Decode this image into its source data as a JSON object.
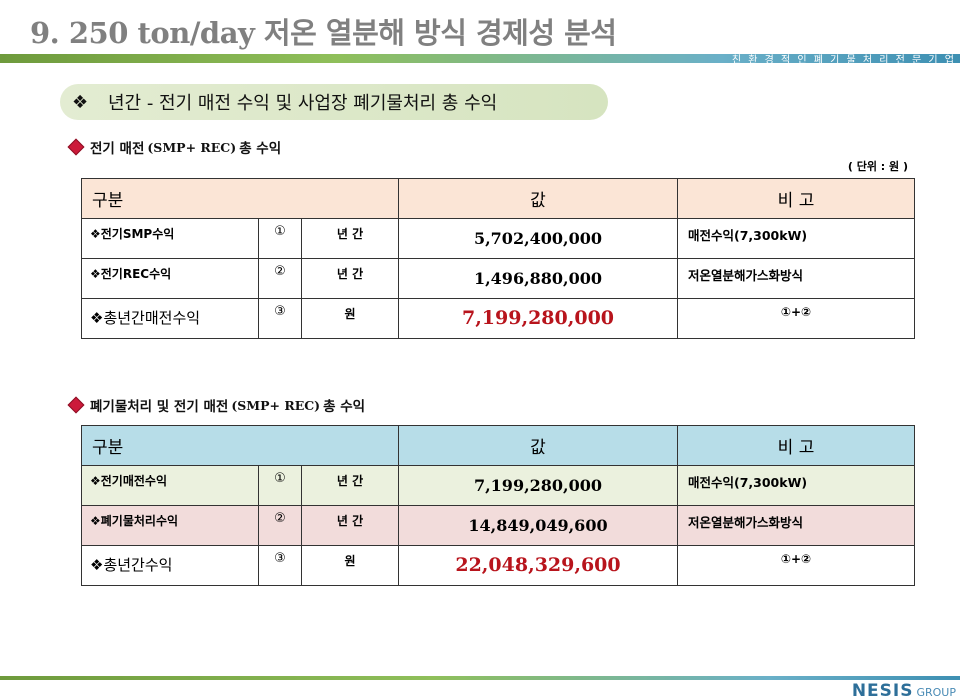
{
  "header": {
    "title": "9. 250 ton/day 저온 열분해 방식 경제성 분석",
    "bar_text": "친 환 경 적 인 폐 기 물 처 리 전 문 기 업"
  },
  "section": {
    "bullet": "❖",
    "title": "년간 - 전기 매전 수익 및  사업장 폐기물처리 총 수익"
  },
  "table1": {
    "subtitle_pre": "전기 매전",
    "subtitle_latin": "(SMP+ REC)",
    "subtitle_post": "총 수익",
    "unit": "( 단위 : 원 )",
    "header": {
      "label": "구분",
      "value": "값",
      "note": "비 고"
    },
    "rows": [
      {
        "label": "❖전기SMP수익",
        "num": "①",
        "period": "년 간",
        "value": "5,702,400,000",
        "note": "매전수익(7,300kW)"
      },
      {
        "label": "❖전기REC수익",
        "num": "②",
        "period": "년 간",
        "value": "1,496,880,000",
        "note": "저온열분해가스화방식"
      },
      {
        "label": "❖총년간매전수익",
        "num": "③",
        "period": "원",
        "value": "7,199,280,000",
        "note": "①+②"
      }
    ]
  },
  "table2": {
    "subtitle_pre": "폐기물처리 및  전기 매전",
    "subtitle_latin": "(SMP+ REC)",
    "subtitle_post": "총 수익",
    "header": {
      "label": "구분",
      "value": "값",
      "note": "비 고"
    },
    "rows": [
      {
        "label": "❖전기매전수익",
        "num": "①",
        "period": "년 간",
        "value": "7,199,280,000",
        "note": "매전수익(7,300kW)"
      },
      {
        "label": "❖폐기물처리수익",
        "num": "②",
        "period": "년 간",
        "value": "14,849,049,600",
        "note": "저온열분해가스화방식"
      },
      {
        "label": "❖총년간수익",
        "num": "③",
        "period": "원",
        "value": "22,048,329,600",
        "note": "①+②"
      }
    ]
  },
  "footer": {
    "logo_brand": "NESIS",
    "logo_group": "GROUP"
  },
  "colors": {
    "accent_red": "#b8141c",
    "header1_bg": "#fbe5d6",
    "header2_bg": "#b7dde8",
    "row_green": "#ebf1de",
    "row_pink": "#f2dcdb"
  }
}
